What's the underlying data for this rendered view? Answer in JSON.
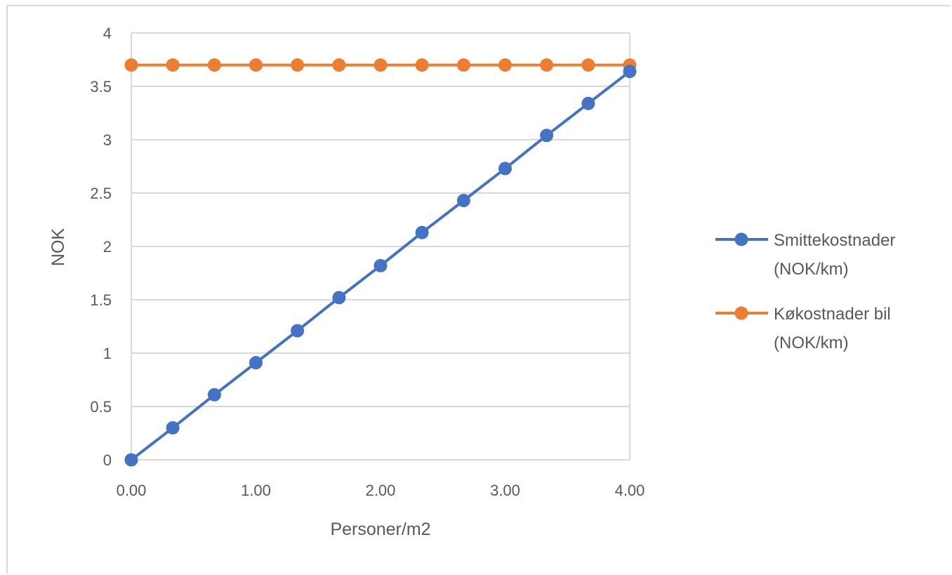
{
  "chart_data": {
    "type": "line",
    "title": "",
    "xlabel": "Personer/m2",
    "ylabel": "NOK",
    "xlim": [
      0,
      4
    ],
    "ylim": [
      0,
      4
    ],
    "x_ticks": [
      "0.00",
      "1.00",
      "2.00",
      "3.00",
      "4.00"
    ],
    "y_ticks": [
      "0",
      "0.5",
      "1",
      "1.5",
      "2",
      "2.5",
      "3",
      "3.5",
      "4"
    ],
    "grid": "horizontal",
    "legend_position": "right",
    "x": [
      0,
      0.333,
      0.667,
      1.0,
      1.333,
      1.667,
      2.0,
      2.333,
      2.667,
      3.0,
      3.333,
      3.667,
      4.0
    ],
    "series": [
      {
        "name": "Smittekostnader (NOK/km)",
        "legend_lines": [
          "Smittekostnader",
          "(NOK/km)"
        ],
        "color": "#4472c4",
        "values": [
          0,
          0.3,
          0.61,
          0.91,
          1.21,
          1.52,
          1.82,
          2.13,
          2.43,
          2.73,
          3.04,
          3.34,
          3.64
        ]
      },
      {
        "name": "Køkostnader bil (NOK/km)",
        "legend_lines": [
          "Køkostnader bil",
          "(NOK/km)"
        ],
        "color": "#ed7d31",
        "values": [
          3.7,
          3.7,
          3.7,
          3.7,
          3.7,
          3.7,
          3.7,
          3.7,
          3.7,
          3.7,
          3.7,
          3.7,
          3.7
        ]
      }
    ]
  }
}
